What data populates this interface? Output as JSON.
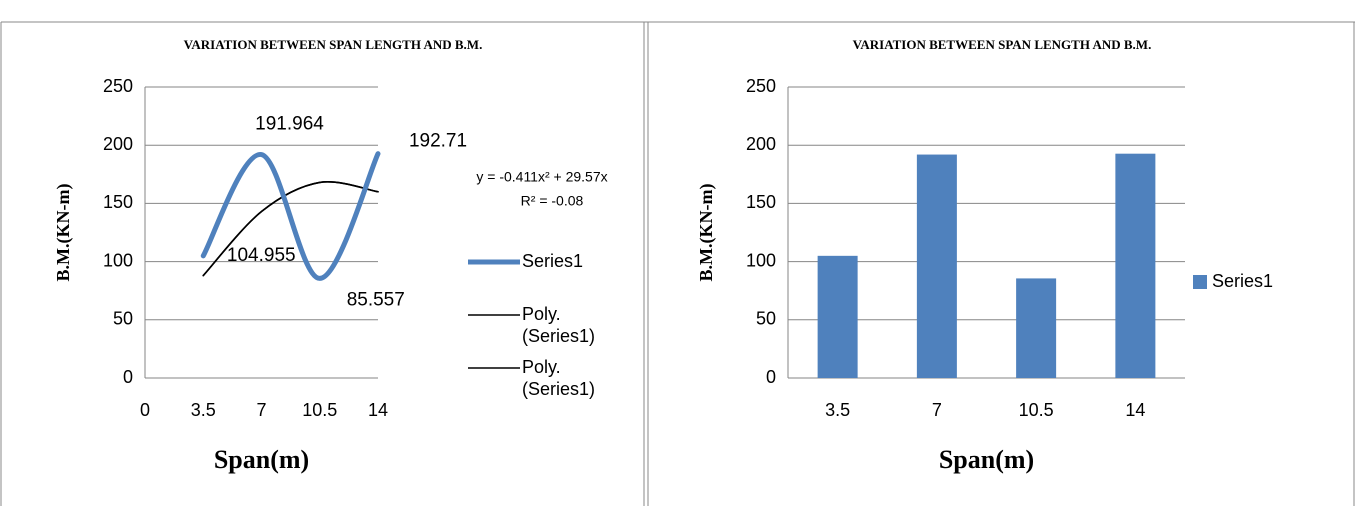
{
  "chart_data": [
    {
      "type": "line",
      "title": "VARIATION BETWEEN SPAN LENGTH AND B.M.",
      "x_label": "Span(m)",
      "y_label": "B.M.(KN-m)",
      "x": [
        3.5,
        7,
        10.5,
        14
      ],
      "series": [
        {
          "name": "Series1",
          "color": "#4f81bd",
          "values": [
            104.955,
            191.964,
            85.557,
            192.71
          ],
          "data_labels": true
        },
        {
          "name": "Poly. (Series1)",
          "color": "#000000",
          "values": [
            88,
            143,
            168,
            160
          ]
        },
        {
          "name": "Poly. (Series1)",
          "color": "#000000",
          "values": [
            88,
            143,
            168,
            160
          ]
        }
      ],
      "annotations": [
        "y = -0.411x² + 29.57x",
        "R² = -0.08"
      ],
      "xlim": [
        0,
        14
      ],
      "xticks": [
        0,
        3.5,
        7,
        10.5,
        14
      ],
      "ylim": [
        0,
        250
      ],
      "yticks": [
        0,
        50,
        100,
        150,
        200,
        250
      ],
      "grid": true,
      "legend": "right"
    },
    {
      "type": "bar",
      "title": "VARIATION BETWEEN SPAN LENGTH AND B.M.",
      "x_label": "Span(m)",
      "y_label": "B.M.(KN-m)",
      "categories": [
        "3.5",
        "7",
        "10.5",
        "14"
      ],
      "series": [
        {
          "name": "Series1",
          "color": "#4f81bd",
          "values": [
            104.955,
            191.964,
            85.557,
            192.71
          ]
        }
      ],
      "ylim": [
        0,
        250
      ],
      "yticks": [
        0,
        50,
        100,
        150,
        200,
        250
      ],
      "grid": true,
      "legend": "right"
    }
  ]
}
